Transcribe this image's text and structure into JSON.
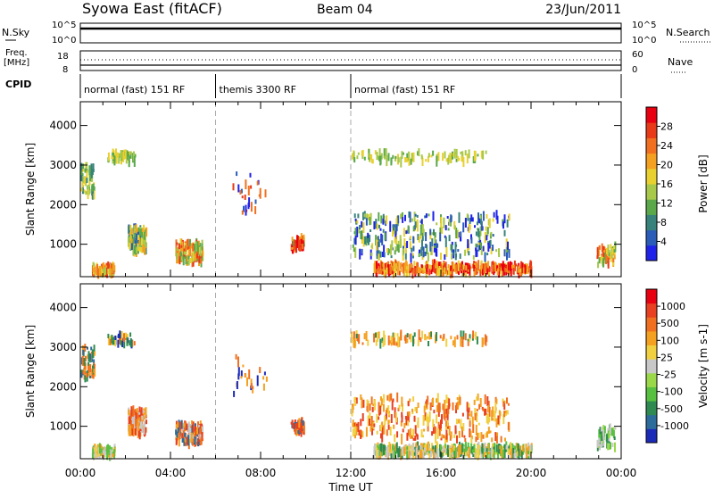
{
  "header": {
    "station": "Syowa East (fitACF)",
    "beam": "Beam 04",
    "date": "23/Jun/2011"
  },
  "top_panels": {
    "nsky_label": "N.Sky",
    "nsky_ticks": [
      "10^5",
      "10^0"
    ],
    "nsearch_label": "N.Search",
    "nsearch_ticks": [
      "10^5",
      "10^0"
    ],
    "freq_label": "Freq.",
    "freq_unit": "[MHz]",
    "freq_ticks": [
      "18",
      "8"
    ],
    "nave_label": "Nave",
    "nave_ticks": [
      "60",
      "0"
    ],
    "cpid_label": "CPID",
    "modes": [
      {
        "label": "normal (fast) 151 RF",
        "start_h": 0,
        "end_h": 6
      },
      {
        "label": "themis 3300 RF",
        "start_h": 6,
        "end_h": 12
      },
      {
        "label": "normal (fast) 151 RF",
        "start_h": 12,
        "end_h": 24
      }
    ]
  },
  "time_axis": {
    "label": "Time UT",
    "ticks": [
      "00:00",
      "04:00",
      "08:00",
      "12:00",
      "16:00",
      "20:00",
      "00:00"
    ]
  },
  "chart_data": [
    {
      "type": "heatmap",
      "name": "power",
      "ylabel": "Slant Range [km]",
      "yticks": [
        1000,
        2000,
        3000,
        4000
      ],
      "ylim": [
        180,
        4600
      ],
      "xlim_hours": [
        0,
        24
      ],
      "colorbar": {
        "label": "Power [dB]",
        "ticks": [
          "4",
          "8",
          "12",
          "16",
          "20",
          "24",
          "28"
        ],
        "colors": [
          "#1f22e8",
          "#2a5cb8",
          "#37827a",
          "#5aa84a",
          "#a8c84a",
          "#e8d030",
          "#f4a020",
          "#f07020",
          "#e83a18",
          "#e80010"
        ]
      },
      "clusters": [
        {
          "t": 0.3,
          "dt": 0.6,
          "r": 2600,
          "dr": 800,
          "n": 60,
          "levels": [
            2,
            3,
            4,
            5
          ]
        },
        {
          "t": 1.0,
          "dt": 1.0,
          "r": 350,
          "dr": 200,
          "n": 90,
          "levels": [
            4,
            5,
            6,
            7,
            8
          ]
        },
        {
          "t": 2.5,
          "dt": 0.8,
          "r": 1100,
          "dr": 600,
          "n": 120,
          "levels": [
            1,
            2,
            3,
            4,
            5,
            6
          ]
        },
        {
          "t": 4.8,
          "dt": 1.2,
          "r": 800,
          "dr": 500,
          "n": 140,
          "levels": [
            3,
            4,
            5,
            6,
            7,
            8
          ]
        },
        {
          "t": 1.8,
          "dt": 1.2,
          "r": 3200,
          "dr": 250,
          "n": 45,
          "levels": [
            3,
            4,
            5
          ]
        },
        {
          "t": 9.6,
          "dt": 0.6,
          "r": 1000,
          "dr": 300,
          "n": 50,
          "levels": [
            3,
            6,
            8,
            9
          ]
        },
        {
          "t": 7.5,
          "dt": 1.5,
          "r": 2300,
          "dr": 1000,
          "n": 25,
          "levels": [
            0,
            1,
            7,
            8
          ]
        },
        {
          "t": 16.5,
          "dt": 7.0,
          "r": 380,
          "dr": 220,
          "n": 420,
          "levels": [
            5,
            6,
            7,
            8,
            9
          ]
        },
        {
          "t": 15.5,
          "dt": 7.0,
          "r": 1200,
          "dr": 1100,
          "n": 320,
          "levels": [
            0,
            1,
            2,
            3,
            4,
            5
          ]
        },
        {
          "t": 15.0,
          "dt": 6.0,
          "r": 3200,
          "dr": 250,
          "n": 100,
          "levels": [
            3,
            4,
            5
          ]
        },
        {
          "t": 23.3,
          "dt": 0.8,
          "r": 700,
          "dr": 500,
          "n": 60,
          "levels": [
            3,
            4,
            5,
            6,
            7,
            8
          ]
        }
      ]
    },
    {
      "type": "heatmap",
      "name": "velocity",
      "ylabel": "Slant Range [km]",
      "yticks": [
        1000,
        2000,
        3000,
        4000
      ],
      "ylim": [
        180,
        4600
      ],
      "xlim_hours": [
        0,
        24
      ],
      "colorbar": {
        "label": "Velocity [m s-1]",
        "ticks": [
          "1000",
          "500",
          "100",
          "25",
          "-25",
          "-100",
          "-500",
          "-1000"
        ],
        "colors": [
          "#1c2ab8",
          "#2c6c9a",
          "#2e8a50",
          "#58c040",
          "#9ad84a",
          "#c8c8c8",
          "#f0d040",
          "#f4a020",
          "#f07020",
          "#e84020",
          "#e80010"
        ]
      },
      "clusters": [
        {
          "t": 0.3,
          "dt": 0.6,
          "r": 2600,
          "dr": 800,
          "n": 60,
          "levels": [
            1,
            2,
            7,
            8
          ]
        },
        {
          "t": 1.0,
          "dt": 1.0,
          "r": 350,
          "dr": 200,
          "n": 90,
          "levels": [
            3,
            5,
            6,
            7
          ]
        },
        {
          "t": 2.5,
          "dt": 0.8,
          "r": 1100,
          "dr": 600,
          "n": 120,
          "levels": [
            5,
            7,
            8,
            9
          ]
        },
        {
          "t": 4.8,
          "dt": 1.2,
          "r": 800,
          "dr": 500,
          "n": 140,
          "levels": [
            1,
            5,
            7,
            8,
            9
          ]
        },
        {
          "t": 1.8,
          "dt": 1.2,
          "r": 3200,
          "dr": 250,
          "n": 45,
          "levels": [
            0,
            2,
            6,
            8
          ]
        },
        {
          "t": 9.6,
          "dt": 0.6,
          "r": 1000,
          "dr": 300,
          "n": 50,
          "levels": [
            1,
            7,
            8,
            9
          ]
        },
        {
          "t": 7.5,
          "dt": 1.5,
          "r": 2300,
          "dr": 1000,
          "n": 25,
          "levels": [
            0,
            7,
            8
          ]
        },
        {
          "t": 16.5,
          "dt": 7.0,
          "r": 380,
          "dr": 220,
          "n": 420,
          "levels": [
            2,
            3,
            5,
            6,
            7
          ]
        },
        {
          "t": 15.5,
          "dt": 7.0,
          "r": 1200,
          "dr": 1100,
          "n": 320,
          "levels": [
            6,
            7,
            8,
            9
          ]
        },
        {
          "t": 15.0,
          "dt": 6.0,
          "r": 3200,
          "dr": 250,
          "n": 100,
          "levels": [
            2,
            6,
            7,
            8
          ]
        },
        {
          "t": 23.3,
          "dt": 0.8,
          "r": 700,
          "dr": 500,
          "n": 60,
          "levels": [
            2,
            3,
            4,
            5
          ]
        }
      ]
    }
  ]
}
